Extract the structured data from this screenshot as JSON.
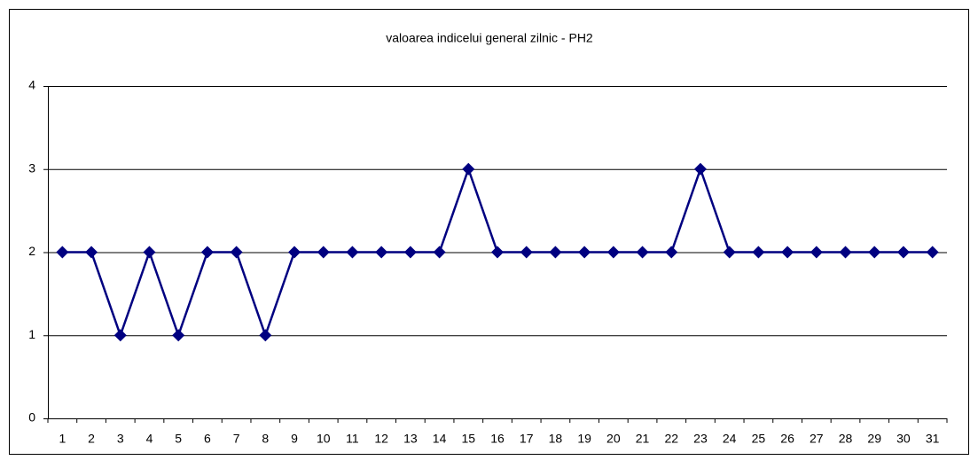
{
  "chart_data": {
    "type": "line",
    "title": "valoarea indicelui general zilnic - PH2",
    "categories": [
      "1",
      "2",
      "3",
      "4",
      "5",
      "6",
      "7",
      "8",
      "9",
      "10",
      "11",
      "12",
      "13",
      "14",
      "15",
      "16",
      "17",
      "18",
      "19",
      "20",
      "21",
      "22",
      "23",
      "24",
      "25",
      "26",
      "27",
      "28",
      "29",
      "30",
      "31"
    ],
    "series": [
      {
        "name": "PH2",
        "color": "#000080",
        "values": [
          2,
          2,
          1,
          2,
          1,
          2,
          2,
          1,
          2,
          2,
          2,
          2,
          2,
          2,
          3,
          2,
          2,
          2,
          2,
          2,
          2,
          2,
          3,
          2,
          2,
          2,
          2,
          2,
          2,
          2,
          2
        ]
      }
    ],
    "ylim": [
      0,
      4
    ],
    "yticks": [
      0,
      1,
      2,
      3,
      4
    ],
    "grid": true,
    "legend": false
  }
}
